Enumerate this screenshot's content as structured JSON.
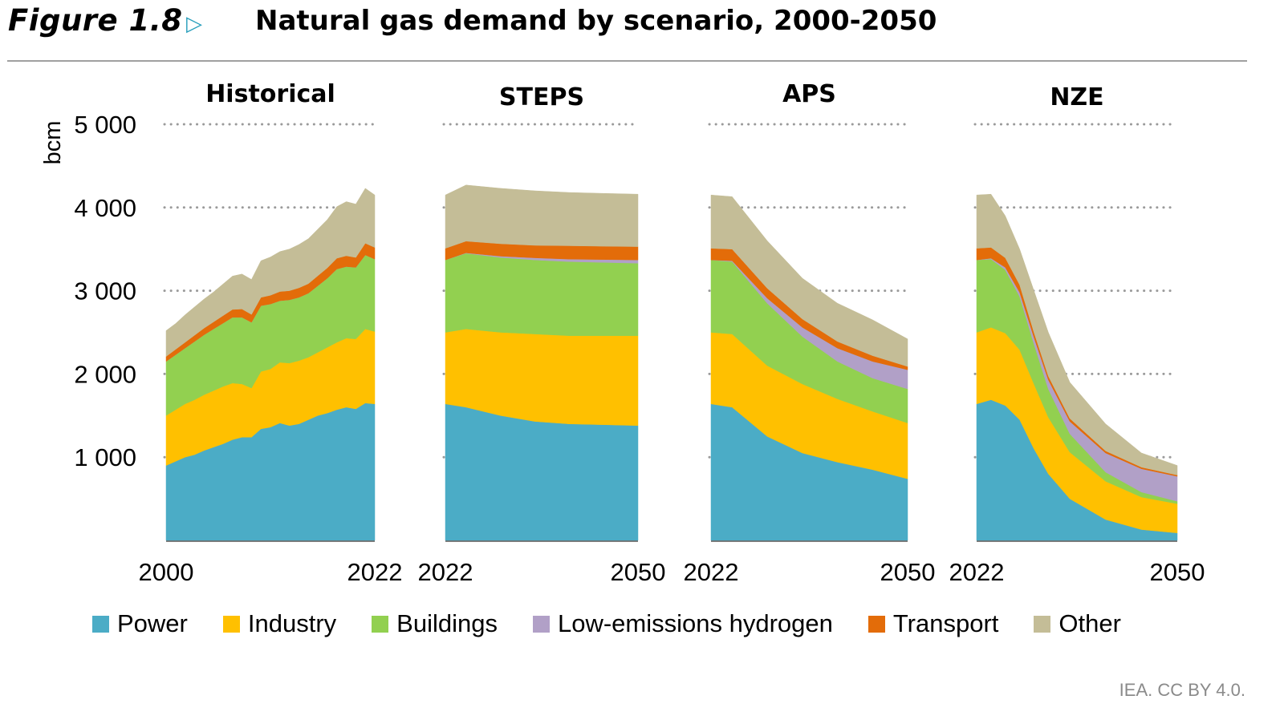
{
  "header": {
    "figure_label": "Figure 1.8",
    "arrow_icon": "triangle-right-outline-icon",
    "title": "Natural gas demand by scenario, 2000-2050"
  },
  "source": "IEA. CC BY 4.0.",
  "chart_data": {
    "type": "area",
    "stacked": true,
    "title": "Natural gas demand by scenario, 2000-2050",
    "ylabel": "bcm",
    "ylim": [
      0,
      5000
    ],
    "yticks": [
      1000,
      2000,
      3000,
      4000,
      5000
    ],
    "ytick_labels": [
      "1 000",
      "2 000",
      "3 000",
      "4 000",
      "5 000"
    ],
    "grid": "horizontal dotted",
    "legend_placement": "bottom",
    "series_names": [
      "Power",
      "Industry",
      "Buildings",
      "Low-emissions hydrogen",
      "Transport",
      "Other"
    ],
    "colors": {
      "Power": "#4bacc6",
      "Industry": "#ffc000",
      "Buildings": "#92d050",
      "Low-emissions hydrogen": "#b1a0c7",
      "Transport": "#e36c09",
      "Other": "#c4bd97"
    },
    "panels": [
      {
        "title": "Historical",
        "xtick_labels": [
          "2000",
          "2022"
        ],
        "x": [
          2000,
          2001,
          2002,
          2003,
          2004,
          2005,
          2006,
          2007,
          2008,
          2009,
          2010,
          2011,
          2012,
          2013,
          2014,
          2015,
          2016,
          2017,
          2018,
          2019,
          2020,
          2021,
          2022
        ],
        "series": {
          "Power": [
            900,
            950,
            1000,
            1030,
            1080,
            1120,
            1160,
            1210,
            1240,
            1240,
            1340,
            1360,
            1410,
            1380,
            1400,
            1450,
            1500,
            1530,
            1570,
            1600,
            1580,
            1650,
            1640
          ],
          "Industry": [
            600,
            620,
            640,
            660,
            670,
            680,
            690,
            680,
            640,
            590,
            690,
            700,
            730,
            750,
            760,
            750,
            760,
            790,
            810,
            830,
            840,
            890,
            870
          ],
          "Buildings": [
            650,
            660,
            670,
            700,
            720,
            740,
            760,
            790,
            800,
            790,
            790,
            780,
            740,
            760,
            760,
            770,
            800,
            830,
            880,
            860,
            860,
            890,
            870
          ],
          "Low-emissions hydrogen": [
            0,
            0,
            0,
            0,
            0,
            0,
            0,
            0,
            0,
            0,
            0,
            0,
            0,
            0,
            0,
            0,
            0,
            0,
            0,
            0,
            0,
            0,
            0
          ],
          "Transport": [
            60,
            65,
            70,
            75,
            80,
            85,
            90,
            95,
            100,
            95,
            100,
            105,
            110,
            110,
            115,
            115,
            120,
            125,
            130,
            130,
            120,
            140,
            140
          ],
          "Other": [
            310,
            310,
            330,
            340,
            350,
            360,
            380,
            400,
            420,
            420,
            440,
            460,
            480,
            500,
            520,
            540,
            560,
            580,
            620,
            650,
            640,
            660,
            630
          ]
        }
      },
      {
        "title": "STEPS",
        "xtick_labels": [
          "2022",
          "2050"
        ],
        "x": [
          2022,
          2025,
          2030,
          2035,
          2040,
          2045,
          2050
        ],
        "series": {
          "Power": [
            1640,
            1600,
            1500,
            1430,
            1400,
            1390,
            1380
          ],
          "Industry": [
            860,
            940,
            1000,
            1050,
            1060,
            1070,
            1080
          ],
          "Buildings": [
            870,
            910,
            900,
            890,
            890,
            880,
            870
          ],
          "Low-emissions hydrogen": [
            0,
            5,
            15,
            25,
            30,
            35,
            40
          ],
          "Transport": [
            140,
            140,
            150,
            150,
            160,
            160,
            160
          ],
          "Other": [
            640,
            675,
            665,
            655,
            640,
            635,
            630
          ]
        }
      },
      {
        "title": "APS",
        "xtick_labels": [
          "2022",
          "2050"
        ],
        "x": [
          2022,
          2025,
          2030,
          2035,
          2040,
          2045,
          2050
        ],
        "series": {
          "Power": [
            1640,
            1600,
            1250,
            1050,
            940,
            850,
            740
          ],
          "Industry": [
            860,
            880,
            850,
            830,
            760,
            700,
            670
          ],
          "Buildings": [
            870,
            870,
            750,
            570,
            450,
            400,
            410
          ],
          "Low-emissions hydrogen": [
            0,
            10,
            60,
            110,
            160,
            200,
            230
          ],
          "Transport": [
            140,
            140,
            120,
            100,
            80,
            70,
            40
          ],
          "Other": [
            640,
            630,
            570,
            490,
            460,
            430,
            330
          ]
        }
      },
      {
        "title": "NZE",
        "xtick_labels": [
          "2022",
          "2050"
        ],
        "x": [
          2022,
          2024,
          2026,
          2028,
          2030,
          2032,
          2035,
          2040,
          2045,
          2050
        ],
        "series": {
          "Power": [
            1640,
            1690,
            1620,
            1450,
            1100,
            800,
            500,
            250,
            130,
            90
          ],
          "Industry": [
            860,
            870,
            870,
            840,
            780,
            680,
            560,
            460,
            390,
            350
          ],
          "Buildings": [
            870,
            820,
            760,
            640,
            480,
            340,
            220,
            110,
            60,
            30
          ],
          "Low-emissions hydrogen": [
            0,
            10,
            30,
            50,
            80,
            110,
            150,
            230,
            280,
            300
          ],
          "Transport": [
            140,
            130,
            115,
            90,
            60,
            45,
            35,
            25,
            20,
            15
          ],
          "Other": [
            640,
            640,
            505,
            430,
            500,
            525,
            435,
            325,
            170,
            115
          ]
        }
      }
    ]
  }
}
